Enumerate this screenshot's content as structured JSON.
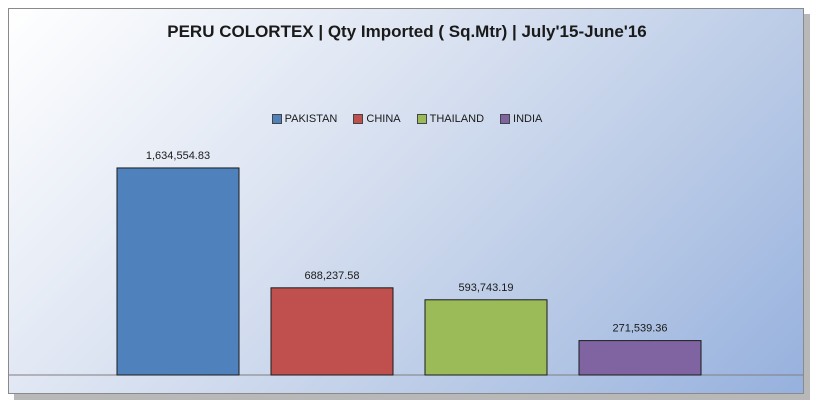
{
  "chart_data": {
    "type": "bar",
    "title": "PERU COLORTEX | Qty Imported ( Sq.Mtr) | July'15-June'16",
    "categories": [
      "PAKISTAN",
      "CHINA",
      "THAILAND",
      "INDIA"
    ],
    "values": [
      1634554.83,
      688237.58,
      593743.19,
      271539.36
    ],
    "value_labels": [
      "1,634,554.83",
      "688,237.58",
      "593,743.19",
      "271,539.36"
    ],
    "colors": [
      "#4f81bd",
      "#c0504d",
      "#9bbb59",
      "#8064a2"
    ],
    "ylim": [
      0,
      1800000
    ],
    "legend_position": "top",
    "grid": false
  }
}
